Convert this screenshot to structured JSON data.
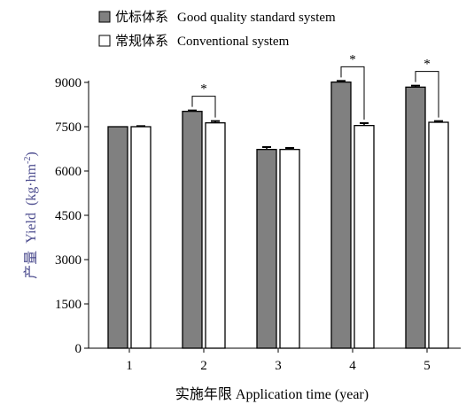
{
  "chart_data": {
    "type": "bar",
    "categories": [
      "1",
      "2",
      "3",
      "4",
      "5"
    ],
    "series": [
      {
        "name": "优标体系 Good quality standard system",
        "color": "#808080",
        "values": [
          7500,
          8020,
          6730,
          9010,
          8840
        ],
        "errors": [
          0,
          30,
          80,
          40,
          50
        ]
      },
      {
        "name": "常规体系 Conventional system",
        "color": "#ffffff",
        "values": [
          7500,
          7630,
          6730,
          7540,
          7650
        ],
        "errors": [
          20,
          60,
          50,
          80,
          40
        ]
      }
    ],
    "legend": [
      {
        "cn": "优标体系",
        "en": "Good quality standard system"
      },
      {
        "cn": "常规体系",
        "en": "Conventional system"
      }
    ],
    "legend_position": "top-left",
    "xlabel": "实施年限 Application time (year)",
    "ylabel": {
      "cn": "产量",
      "en": "Yield",
      "unit": "(kg·hm",
      "exp": "-2",
      "close": ")"
    },
    "ylim": [
      0,
      9000
    ],
    "yticks": [
      0,
      1500,
      3000,
      4500,
      6000,
      7500,
      9000
    ],
    "significance": [
      {
        "category": "2",
        "mark": "*"
      },
      {
        "category": "4",
        "mark": "*"
      },
      {
        "category": "5",
        "mark": "*"
      }
    ],
    "grid": false
  }
}
